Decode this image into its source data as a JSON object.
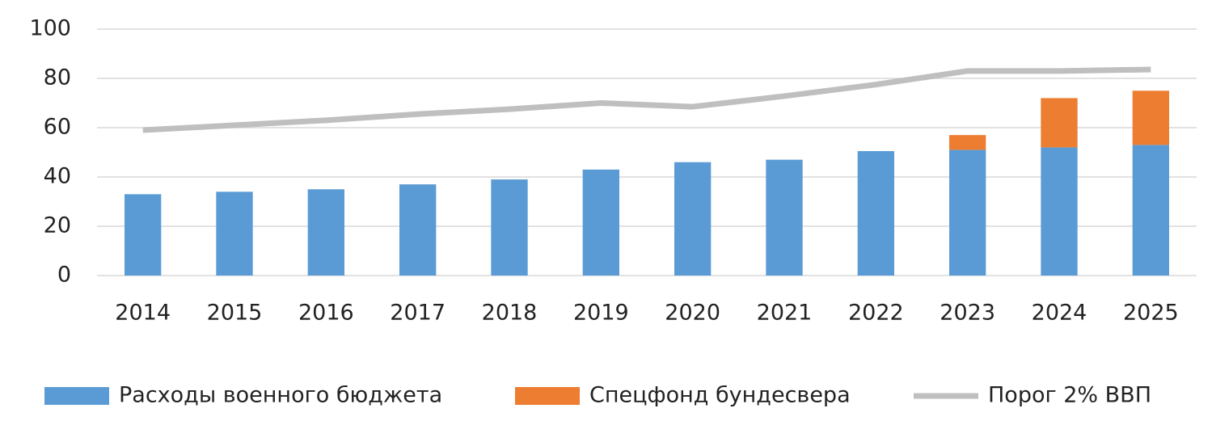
{
  "chart_data": {
    "type": "bar",
    "categories": [
      "2014",
      "2015",
      "2016",
      "2017",
      "2018",
      "2019",
      "2020",
      "2021",
      "2022",
      "2023",
      "2024",
      "2025"
    ],
    "series": [
      {
        "name": "Расходы военного бюджета",
        "color": "#5b9bd5",
        "type": "bar",
        "values": [
          33,
          34,
          35,
          37,
          39,
          43,
          46,
          47,
          50.5,
          51,
          52,
          53
        ]
      },
      {
        "name": "Спецфонд бундесвера",
        "color": "#ed7d31",
        "type": "bar",
        "values": [
          null,
          null,
          null,
          null,
          null,
          null,
          null,
          null,
          null,
          6,
          20,
          22
        ]
      },
      {
        "name": "Порог 2% ВВП",
        "color": "#bfbfbf",
        "type": "line",
        "values": [
          59,
          61,
          63,
          65.5,
          67.5,
          70,
          68.5,
          72.8,
          77.5,
          83,
          83,
          83.6
        ]
      }
    ],
    "stacked": true,
    "ylim": [
      0,
      100
    ],
    "yticks": [
      0,
      20,
      40,
      60,
      80,
      100
    ],
    "grid": true,
    "legend": "bottom"
  }
}
